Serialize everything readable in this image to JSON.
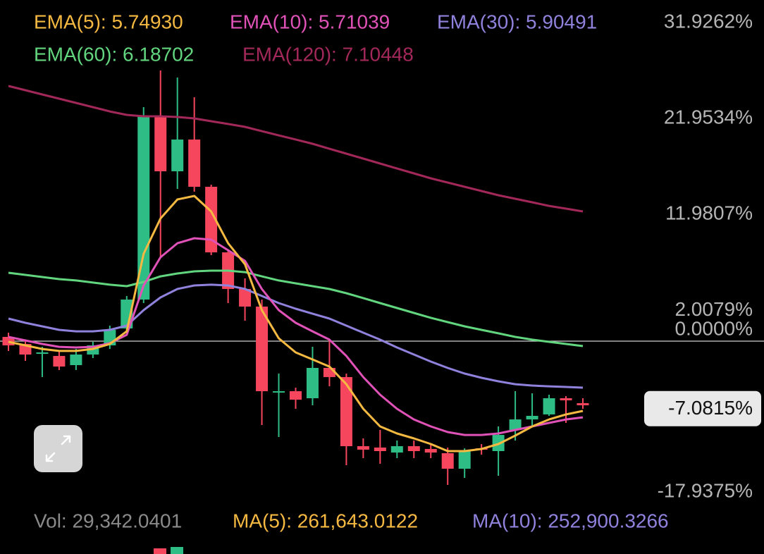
{
  "chart_data": {
    "type": "candlestick",
    "series": [
      {
        "name": "EMA(5): 5.74930",
        "color": "#f5b942",
        "values": [
          -0.07,
          -0.44,
          -0.81,
          -1.02,
          -1.02,
          -0.81,
          -0.29,
          1.02,
          9.08,
          12.74,
          14.71,
          15.08,
          13.47,
          10.17,
          7.98,
          3.22,
          0.29,
          -1.17,
          -1.9,
          -2.64,
          -4.47,
          -7.03,
          -8.86,
          -9.59,
          -10.1,
          -10.69,
          -11.42,
          -11.42,
          -11.2,
          -10.69,
          -9.81,
          -8.86,
          -8.13,
          -7.61,
          -7.25
        ]
      },
      {
        "name": "EMA(10): 5.71039",
        "color": "#e052b8",
        "values": [
          0.44,
          0.07,
          -0.29,
          -0.59,
          -0.66,
          -0.59,
          -0.22,
          0.66,
          5.78,
          8.71,
          10.17,
          10.69,
          10.54,
          9.44,
          8.34,
          5.42,
          3.22,
          1.9,
          1.02,
          0.15,
          -1.54,
          -3.73,
          -5.56,
          -7.03,
          -8.13,
          -8.86,
          -9.44,
          -9.74,
          -9.74,
          -9.59,
          -9.22,
          -8.86,
          -8.49,
          -8.13,
          -7.91
        ]
      },
      {
        "name": "EMA(30): 5.90491",
        "color": "#8f82dc",
        "values": [
          2.34,
          1.9,
          1.54,
          1.17,
          1.02,
          1.02,
          1.17,
          1.61,
          3.22,
          4.54,
          5.42,
          5.78,
          5.86,
          5.78,
          5.42,
          4.69,
          3.95,
          3.37,
          2.85,
          2.34,
          1.61,
          0.88,
          0.15,
          -0.66,
          -1.39,
          -2.12,
          -2.78,
          -3.37,
          -3.81,
          -4.17,
          -4.47,
          -4.61,
          -4.69,
          -4.76,
          -4.83
        ]
      },
      {
        "name": "EMA(60): 6.18702",
        "color": "#62d67e",
        "values": [
          7.1,
          6.88,
          6.66,
          6.44,
          6.3,
          6.08,
          5.86,
          5.71,
          6.15,
          6.73,
          7.03,
          7.25,
          7.32,
          7.32,
          7.17,
          6.73,
          6.3,
          6.0,
          5.71,
          5.42,
          4.98,
          4.47,
          3.95,
          3.44,
          2.93,
          2.42,
          1.98,
          1.54,
          1.17,
          0.81,
          0.44,
          0.15,
          -0.07,
          -0.29,
          -0.51
        ]
      },
      {
        "name": "EMA(120): 7.10448",
        "color": "#a3285a",
        "values": [
          26.5,
          26.06,
          25.62,
          25.18,
          24.74,
          24.3,
          23.86,
          23.5,
          23.35,
          23.35,
          23.28,
          23.13,
          22.84,
          22.55,
          22.25,
          21.81,
          21.37,
          20.94,
          20.5,
          19.98,
          19.47,
          18.96,
          18.45,
          17.93,
          17.42,
          16.91,
          16.47,
          16.03,
          15.59,
          15.15,
          14.79,
          14.42,
          14.05,
          13.76,
          13.47
        ]
      }
    ],
    "candles": {
      "open": [
        0.44,
        -0.29,
        -1.17,
        -1.54,
        -2.49,
        -1.39,
        -0.44,
        1.32,
        4.32,
        23.35,
        17.64,
        20.94,
        16.03,
        9.22,
        5.42,
        3.59,
        -5.2,
        -5.2,
        -5.93,
        -2.78,
        -3.73,
        -10.91,
        -11.05,
        -11.57,
        -10.91,
        -11.2,
        -11.64,
        -13.25,
        -11.13,
        -11.42,
        -9.22,
        -8.13,
        -7.61,
        -5.93,
        -6.44
      ],
      "high": [
        0.88,
        0.15,
        -0.59,
        -0.95,
        -0.81,
        -0.07,
        1.61,
        4.69,
        24.3,
        28.11,
        27.38,
        25.33,
        16.25,
        9.44,
        6.52,
        4.32,
        -3.37,
        -4.83,
        -0.59,
        0.15,
        -3.37,
        -10.1,
        -9.22,
        -10.32,
        -10.32,
        -10.69,
        -11.05,
        -11.13,
        -10.69,
        -8.86,
        -5.2,
        -5.42,
        -5.56,
        -5.71,
        -5.93
      ],
      "low": [
        -1.02,
        -2.05,
        -3.73,
        -3.0,
        -3.0,
        -1.76,
        -0.81,
        1.02,
        3.95,
        8.71,
        15.81,
        15.52,
        8.93,
        3.95,
        2.12,
        -8.71,
        -9.96,
        -7.03,
        -6.66,
        -4.69,
        -12.88,
        -12.15,
        -12.74,
        -12.15,
        -12.15,
        -12.15,
        -14.93,
        -14.2,
        -11.79,
        -13.98,
        -10.32,
        -8.86,
        -7.76,
        -8.49,
        -7.03
      ],
      "close": [
        -0.44,
        -1.39,
        -1.17,
        -2.64,
        -1.39,
        -0.44,
        1.17,
        4.32,
        23.35,
        17.64,
        20.94,
        16.03,
        9.22,
        5.42,
        3.59,
        -5.2,
        -5.2,
        -6.08,
        -2.78,
        -3.73,
        -10.91,
        -11.27,
        -11.42,
        -10.91,
        -11.42,
        -11.57,
        -13.25,
        -11.42,
        -11.27,
        -9.74,
        -8.13,
        -7.76,
        -5.93,
        -6.15,
        -6.66
      ]
    },
    "up_color": "#2ebd85",
    "down_color": "#f6465d",
    "ylim": [
      -18.74,
      35.43
    ],
    "yticks": [
      {
        "value": 31.9262,
        "label": "31.9262%"
      },
      {
        "value": 21.9534,
        "label": "21.9534%"
      },
      {
        "value": 11.9807,
        "label": "11.9807%"
      },
      {
        "value": 2.0079,
        "label": "2.0079%"
      },
      {
        "value": 0,
        "label": "0.0000%"
      },
      {
        "value": -17.9375,
        "label": "-17.9375%"
      }
    ],
    "zero_line": true,
    "last_price": {
      "value": -7.0815,
      "label": "-7.0815%"
    },
    "volume_legend": [
      {
        "text": "Vol: 29,342.0401",
        "color": "#8a8a8a"
      },
      {
        "text": "MA(5): 261,643.0122",
        "color": "#f5b942"
      },
      {
        "text": "MA(10): 252,900.3266",
        "color": "#8f82dc"
      }
    ]
  }
}
